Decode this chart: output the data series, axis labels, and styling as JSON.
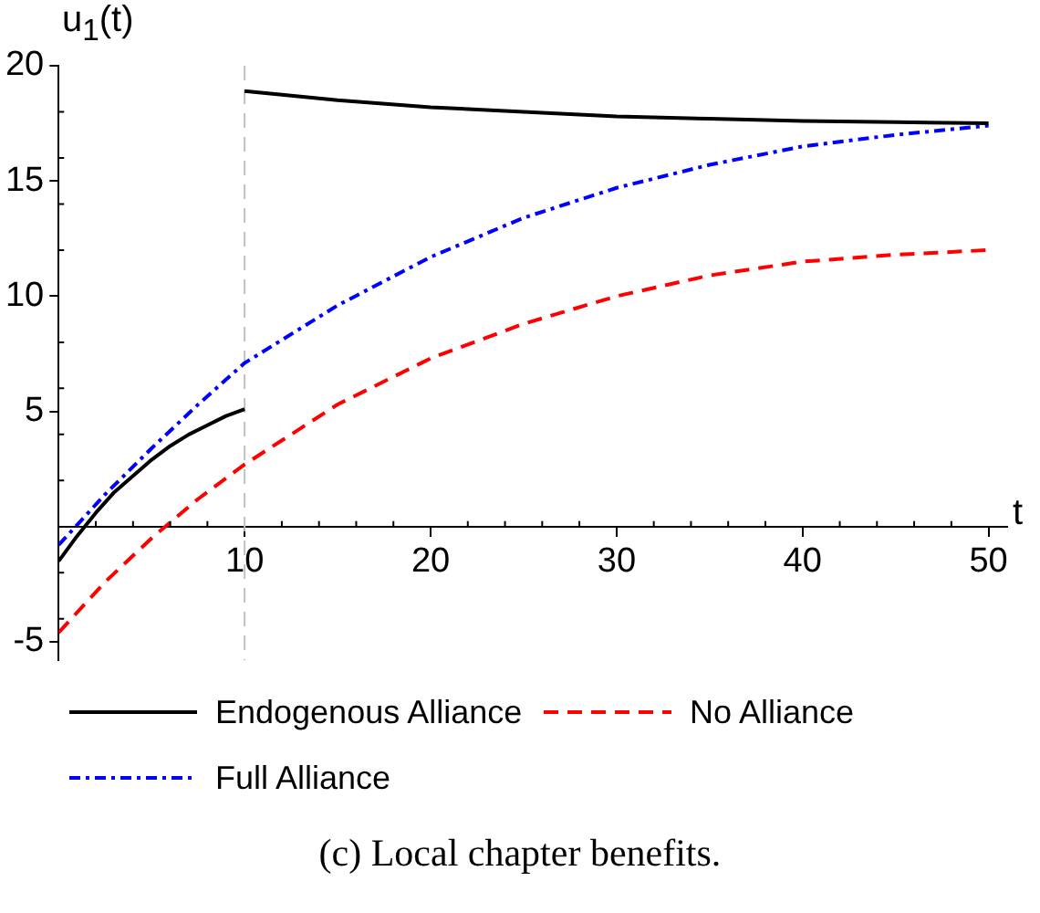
{
  "chart_data": {
    "type": "line",
    "xlabel": "t",
    "ylabel": "u$_{1}$(t)",
    "xlim": [
      0,
      51
    ],
    "ylim": [
      -5.8,
      20
    ],
    "xticks": [
      10,
      20,
      30,
      40,
      50
    ],
    "yticks": [
      -5,
      5,
      10,
      15,
      20
    ],
    "grid": false,
    "legend": "bottom",
    "marker": "none",
    "series": [
      {
        "name": "Endogenous Alliance",
        "color": "#000000",
        "line_style": "solid",
        "x": [
          0,
          1,
          2,
          3,
          4,
          5,
          6,
          7,
          8,
          9,
          10
        ],
        "values": [
          -1.5,
          -0.4,
          0.6,
          1.5,
          2.2,
          2.9,
          3.5,
          4.0,
          4.4,
          4.8,
          5.1
        ]
      },
      {
        "color": "#000000",
        "line_style": "solid",
        "x": [
          10,
          15,
          20,
          25,
          30,
          35,
          40,
          45,
          50
        ],
        "values": [
          18.9,
          18.5,
          18.2,
          18.0,
          17.8,
          17.7,
          17.6,
          17.55,
          17.5
        ]
      },
      {
        "name": "No Alliance",
        "color": "#ff0000",
        "line_style": "dashed",
        "x": [
          0,
          2.5,
          5,
          7.5,
          10,
          15,
          20,
          25,
          30,
          35,
          40,
          45,
          50
        ],
        "values": [
          -4.6,
          -2.4,
          -0.5,
          1.2,
          2.7,
          5.3,
          7.3,
          8.8,
          10.0,
          10.9,
          11.5,
          11.8,
          12.0
        ]
      },
      {
        "name": "Full Alliance",
        "color": "#0000ff",
        "line_style": "dashdot",
        "x": [
          0,
          2.5,
          5,
          7.5,
          10,
          15,
          20,
          25,
          30,
          35,
          40,
          45,
          50
        ],
        "values": [
          -0.8,
          1.4,
          3.4,
          5.3,
          7.1,
          9.6,
          11.7,
          13.4,
          14.7,
          15.7,
          16.5,
          17.0,
          17.4
        ]
      }
    ],
    "ref_lines": [
      {
        "axis": "x",
        "value": 10,
        "color": "#c0c0c0",
        "line_style": "dashed"
      }
    ],
    "annotations": [
      "(c) Local chapter benefits."
    ]
  }
}
